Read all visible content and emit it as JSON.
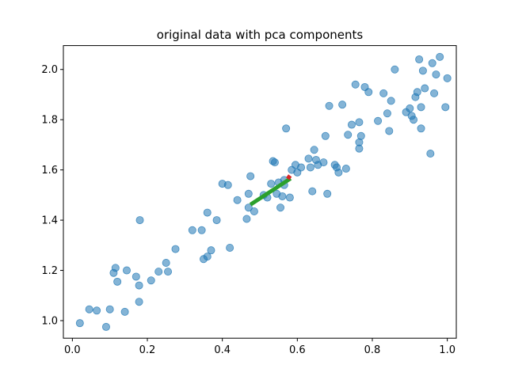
{
  "chart_data": {
    "type": "scatter",
    "title": "original data with pca components",
    "xlabel": "",
    "ylabel": "",
    "xlim": [
      -0.024,
      1.024
    ],
    "ylim": [
      0.93,
      2.095
    ],
    "xticks": [
      0.0,
      0.2,
      0.4,
      0.6,
      0.8,
      1.0
    ],
    "xtick_labels": [
      "0.0",
      "0.2",
      "0.4",
      "0.6",
      "0.8",
      "1.0"
    ],
    "yticks": [
      1.0,
      1.2,
      1.4,
      1.6,
      1.8,
      2.0
    ],
    "ytick_labels": [
      "1.0",
      "1.2",
      "1.4",
      "1.6",
      "1.8",
      "2.0"
    ],
    "grid": false,
    "colors": {
      "points": "#1f77b4",
      "component_1": "#2ca02c",
      "component_2": "#d62728"
    },
    "points": [
      {
        "x": 0.02,
        "y": 0.99
      },
      {
        "x": 0.045,
        "y": 1.045
      },
      {
        "x": 0.065,
        "y": 1.04
      },
      {
        "x": 0.09,
        "y": 0.975
      },
      {
        "x": 0.1,
        "y": 1.045
      },
      {
        "x": 0.11,
        "y": 1.19
      },
      {
        "x": 0.115,
        "y": 1.21
      },
      {
        "x": 0.12,
        "y": 1.155
      },
      {
        "x": 0.14,
        "y": 1.035
      },
      {
        "x": 0.145,
        "y": 1.2
      },
      {
        "x": 0.17,
        "y": 1.175
      },
      {
        "x": 0.178,
        "y": 1.14
      },
      {
        "x": 0.178,
        "y": 1.075
      },
      {
        "x": 0.18,
        "y": 1.4
      },
      {
        "x": 0.21,
        "y": 1.16
      },
      {
        "x": 0.23,
        "y": 1.195
      },
      {
        "x": 0.25,
        "y": 1.23
      },
      {
        "x": 0.255,
        "y": 1.195
      },
      {
        "x": 0.275,
        "y": 1.285
      },
      {
        "x": 0.32,
        "y": 1.36
      },
      {
        "x": 0.345,
        "y": 1.36
      },
      {
        "x": 0.35,
        "y": 1.245
      },
      {
        "x": 0.36,
        "y": 1.255
      },
      {
        "x": 0.36,
        "y": 1.43
      },
      {
        "x": 0.37,
        "y": 1.28
      },
      {
        "x": 0.385,
        "y": 1.4
      },
      {
        "x": 0.4,
        "y": 1.545
      },
      {
        "x": 0.415,
        "y": 1.54
      },
      {
        "x": 0.42,
        "y": 1.29
      },
      {
        "x": 0.44,
        "y": 1.48
      },
      {
        "x": 0.465,
        "y": 1.405
      },
      {
        "x": 0.47,
        "y": 1.505
      },
      {
        "x": 0.47,
        "y": 1.45
      },
      {
        "x": 0.475,
        "y": 1.575
      },
      {
        "x": 0.485,
        "y": 1.435
      },
      {
        "x": 0.51,
        "y": 1.5
      },
      {
        "x": 0.52,
        "y": 1.49
      },
      {
        "x": 0.53,
        "y": 1.545
      },
      {
        "x": 0.535,
        "y": 1.635
      },
      {
        "x": 0.54,
        "y": 1.63
      },
      {
        "x": 0.545,
        "y": 1.505
      },
      {
        "x": 0.55,
        "y": 1.55
      },
      {
        "x": 0.555,
        "y": 1.45
      },
      {
        "x": 0.56,
        "y": 1.495
      },
      {
        "x": 0.565,
        "y": 1.54
      },
      {
        "x": 0.565,
        "y": 1.56
      },
      {
        "x": 0.57,
        "y": 1.765
      },
      {
        "x": 0.58,
        "y": 1.49
      },
      {
        "x": 0.585,
        "y": 1.6
      },
      {
        "x": 0.595,
        "y": 1.62
      },
      {
        "x": 0.6,
        "y": 1.59
      },
      {
        "x": 0.61,
        "y": 1.61
      },
      {
        "x": 0.63,
        "y": 1.645
      },
      {
        "x": 0.635,
        "y": 1.61
      },
      {
        "x": 0.64,
        "y": 1.515
      },
      {
        "x": 0.645,
        "y": 1.68
      },
      {
        "x": 0.65,
        "y": 1.64
      },
      {
        "x": 0.655,
        "y": 1.62
      },
      {
        "x": 0.67,
        "y": 1.63
      },
      {
        "x": 0.675,
        "y": 1.735
      },
      {
        "x": 0.68,
        "y": 1.505
      },
      {
        "x": 0.685,
        "y": 1.855
      },
      {
        "x": 0.7,
        "y": 1.62
      },
      {
        "x": 0.705,
        "y": 1.61
      },
      {
        "x": 0.71,
        "y": 1.59
      },
      {
        "x": 0.72,
        "y": 1.86
      },
      {
        "x": 0.73,
        "y": 1.605
      },
      {
        "x": 0.735,
        "y": 1.74
      },
      {
        "x": 0.745,
        "y": 1.78
      },
      {
        "x": 0.755,
        "y": 1.94
      },
      {
        "x": 0.765,
        "y": 1.79
      },
      {
        "x": 0.765,
        "y": 1.71
      },
      {
        "x": 0.765,
        "y": 1.685
      },
      {
        "x": 0.77,
        "y": 1.735
      },
      {
        "x": 0.78,
        "y": 1.93
      },
      {
        "x": 0.79,
        "y": 1.91
      },
      {
        "x": 0.815,
        "y": 1.795
      },
      {
        "x": 0.83,
        "y": 1.905
      },
      {
        "x": 0.84,
        "y": 1.825
      },
      {
        "x": 0.845,
        "y": 1.755
      },
      {
        "x": 0.85,
        "y": 1.875
      },
      {
        "x": 0.86,
        "y": 2.0
      },
      {
        "x": 0.89,
        "y": 1.83
      },
      {
        "x": 0.9,
        "y": 1.845
      },
      {
        "x": 0.905,
        "y": 1.815
      },
      {
        "x": 0.91,
        "y": 1.8
      },
      {
        "x": 0.915,
        "y": 1.89
      },
      {
        "x": 0.92,
        "y": 1.91
      },
      {
        "x": 0.925,
        "y": 2.04
      },
      {
        "x": 0.93,
        "y": 1.85
      },
      {
        "x": 0.93,
        "y": 1.765
      },
      {
        "x": 0.935,
        "y": 1.995
      },
      {
        "x": 0.94,
        "y": 1.925
      },
      {
        "x": 0.955,
        "y": 1.665
      },
      {
        "x": 0.96,
        "y": 2.025
      },
      {
        "x": 0.965,
        "y": 1.905
      },
      {
        "x": 0.97,
        "y": 1.98
      },
      {
        "x": 0.98,
        "y": 2.05
      },
      {
        "x": 0.995,
        "y": 1.85
      },
      {
        "x": 1.0,
        "y": 1.965
      }
    ],
    "components": [
      {
        "x": [
          0.475,
          0.582
        ],
        "y": [
          1.462,
          1.566
        ]
      },
      {
        "x": [
          0.573,
          0.582
        ],
        "y": [
          1.576,
          1.566
        ]
      }
    ]
  }
}
